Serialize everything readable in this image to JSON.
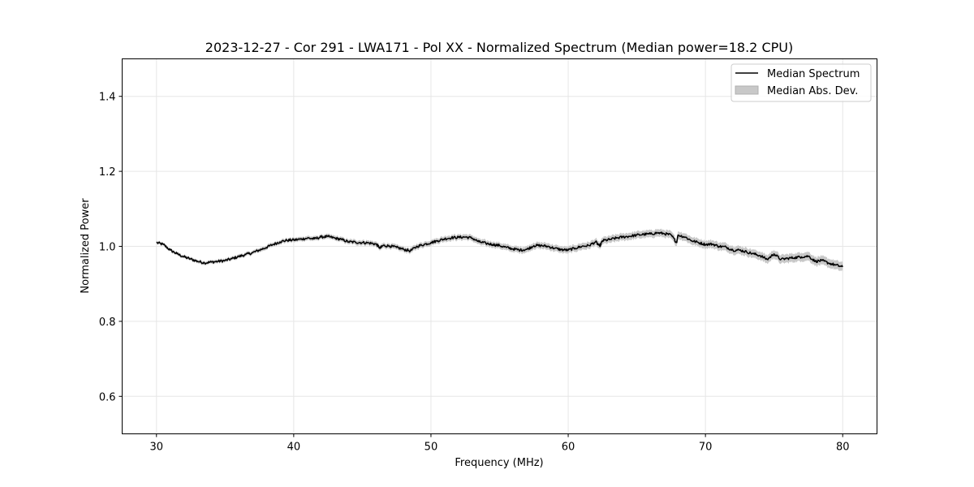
{
  "chart_data": {
    "type": "line",
    "title": "2023-12-27 - Cor 291 - LWA171 - Pol XX - Normalized Spectrum (Median power=18.2 CPU)",
    "xlabel": "Frequency (MHz)",
    "ylabel": "Normalized Power",
    "xlim": [
      27.5,
      82.5
    ],
    "ylim": [
      0.5,
      1.5
    ],
    "xticks": [
      30,
      40,
      50,
      60,
      70,
      80
    ],
    "yticks": [
      0.6,
      0.8,
      1.0,
      1.2,
      1.4
    ],
    "xtick_labels": [
      "30",
      "40",
      "50",
      "60",
      "70",
      "80"
    ],
    "ytick_labels": [
      "0.6",
      "0.8",
      "1.0",
      "1.2",
      "1.4"
    ],
    "grid": true,
    "legend_position": "top-right",
    "legend": [
      "Median Spectrum",
      "Median Abs. Dev."
    ],
    "series": [
      {
        "name": "Median Spectrum",
        "color": "#000000",
        "x": [
          30,
          30.5,
          31,
          31.5,
          32,
          32.5,
          33,
          33.5,
          34,
          34.5,
          35,
          35.5,
          36,
          36.5,
          37,
          37.5,
          38,
          38.5,
          39,
          39.5,
          40,
          40.5,
          41,
          41.5,
          42,
          42.5,
          43,
          43.5,
          44,
          44.5,
          45,
          45.5,
          46,
          46.3,
          46.5,
          47,
          47.5,
          48,
          48.5,
          49,
          49.5,
          50,
          50.5,
          51,
          51.5,
          52,
          52.5,
          53,
          53.5,
          54,
          54.5,
          55,
          55.5,
          56,
          56.5,
          57,
          57.5,
          58,
          58.5,
          59,
          59.5,
          60,
          60.5,
          61,
          61.5,
          62,
          62.3,
          62.5,
          63,
          63.5,
          64,
          64.5,
          65,
          65.5,
          66,
          66.5,
          67,
          67.5,
          67.9,
          68,
          68.5,
          69,
          69.5,
          70,
          70.5,
          71,
          71.5,
          72,
          72.5,
          73,
          73.5,
          74,
          74.5,
          75,
          75.5,
          76,
          76.5,
          77,
          77.5,
          78,
          78.5,
          79,
          79.5,
          80
        ],
        "y": [
          1.01,
          1.005,
          0.99,
          0.98,
          0.972,
          0.966,
          0.96,
          0.956,
          0.958,
          0.96,
          0.962,
          0.967,
          0.973,
          0.978,
          0.983,
          0.99,
          0.997,
          1.005,
          1.012,
          1.016,
          1.017,
          1.019,
          1.022,
          1.02,
          1.025,
          1.026,
          1.022,
          1.018,
          1.012,
          1.011,
          1.01,
          1.009,
          1.006,
          0.995,
          1.002,
          1.001,
          0.997,
          0.992,
          0.988,
          1.0,
          1.005,
          1.01,
          1.015,
          1.02,
          1.023,
          1.024,
          1.025,
          1.022,
          1.012,
          1.008,
          1.005,
          1.002,
          0.997,
          0.993,
          0.99,
          0.992,
          1.002,
          1.002,
          1.0,
          0.995,
          0.991,
          0.99,
          0.995,
          1.0,
          1.002,
          1.012,
          1.0,
          1.015,
          1.018,
          1.022,
          1.025,
          1.027,
          1.03,
          1.032,
          1.033,
          1.036,
          1.034,
          1.03,
          1.01,
          1.03,
          1.025,
          1.015,
          1.01,
          1.005,
          1.006,
          1.0,
          0.998,
          0.99,
          0.99,
          0.985,
          0.98,
          0.975,
          0.965,
          0.98,
          0.965,
          0.968,
          0.97,
          0.972,
          0.974,
          0.96,
          0.962,
          0.955,
          0.95,
          0.945
        ]
      }
    ],
    "band": {
      "name": "Median Abs. Dev.",
      "color": "#c8c8c8",
      "halfwidth_start": 0.004,
      "halfwidth_end": 0.012
    }
  }
}
